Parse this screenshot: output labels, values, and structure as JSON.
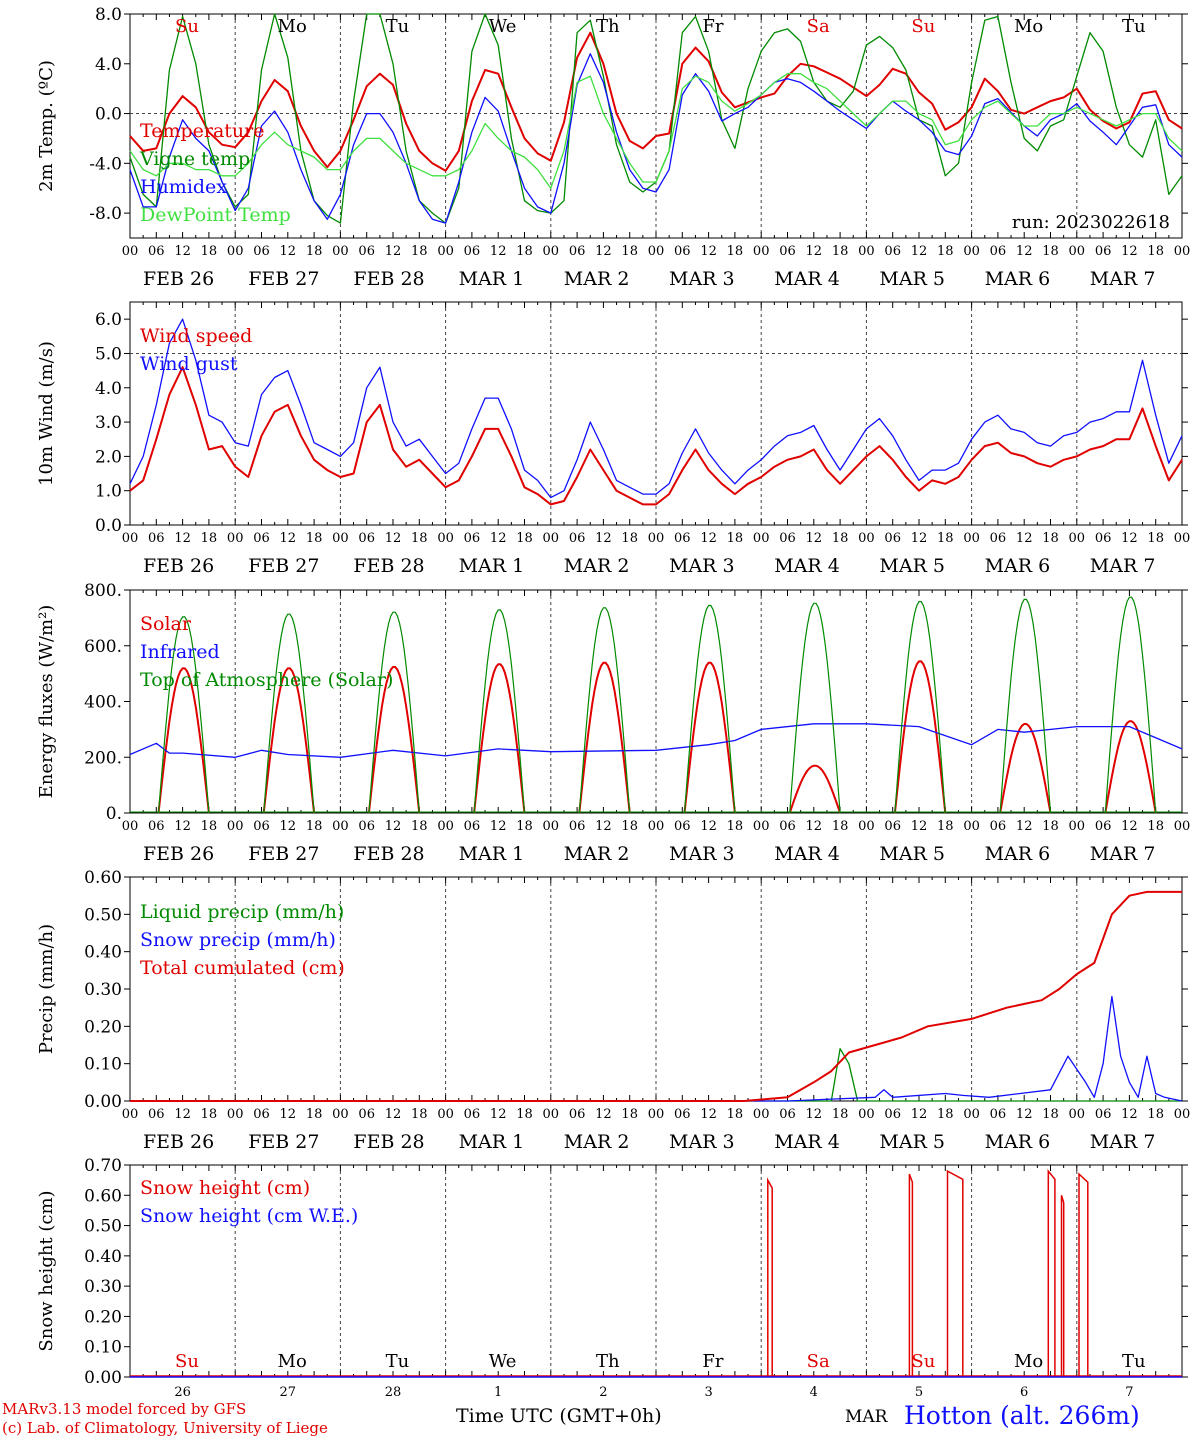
{
  "station_title": "Hotton (alt. 266m)",
  "footer": {
    "model_line": "MARv3.13 model forced by GFS",
    "credit_line": "(c) Lab. of Climatology, University of Liege",
    "x_axis_title": "Time UTC (GMT+0h)",
    "month_label": "MAR"
  },
  "colors": {
    "red": "#e00000",
    "green": "#008a00",
    "blue": "#1010ff",
    "light_green": "#40e040",
    "axis": "#000000"
  },
  "chart_data": [
    {
      "type": "line",
      "ylabel": "2m Temp. (ºC)",
      "ylim": [
        -10,
        8
      ],
      "yticks": [
        8,
        4,
        0,
        -4,
        -8
      ],
      "ytick_labels": [
        "8.0",
        "4.0",
        "0.0",
        "-4.0",
        "-8.0"
      ],
      "hline": 0,
      "annotation": "run: 2023022618",
      "weekday_labels": [
        "Su",
        "Mo",
        "Tu",
        "We",
        "Th",
        "Fr",
        "Sa",
        "Su",
        "Mo",
        "Tu"
      ],
      "weekday_colors": [
        "#e00000",
        "#000000",
        "#000000",
        "#000000",
        "#000000",
        "#000000",
        "#e00000",
        "#e00000",
        "#000000",
        "#000000"
      ],
      "x_hours": [
        0,
        3,
        6,
        9,
        12,
        15,
        18,
        21,
        24,
        27,
        30,
        33,
        36,
        39,
        42,
        45,
        48,
        51,
        54,
        57,
        60,
        63,
        66,
        69,
        72,
        75,
        78,
        81,
        84,
        87,
        90,
        93,
        96,
        99,
        102,
        105,
        108,
        111,
        114,
        117,
        120,
        123,
        126,
        129,
        132,
        135,
        138,
        141,
        144,
        147,
        150,
        153,
        156,
        159,
        162,
        165,
        168,
        171,
        174,
        177,
        180,
        183,
        186,
        189,
        192,
        195,
        198,
        201,
        204,
        207,
        210,
        213,
        216,
        219,
        222,
        225,
        228,
        231,
        234,
        237,
        240
      ],
      "series": [
        {
          "name": "Temperature",
          "color": "#e00000",
          "values": [
            -1.8,
            -3.0,
            -2.8,
            0.0,
            1.4,
            0.5,
            -1.5,
            -2.5,
            -2.7,
            -1.5,
            1.0,
            2.7,
            1.8,
            -1.0,
            -3.0,
            -4.3,
            -3.0,
            -0.5,
            2.2,
            3.2,
            2.3,
            -0.8,
            -3.0,
            -4.0,
            -4.6,
            -3.0,
            1.0,
            3.5,
            3.2,
            0.5,
            -2.0,
            -3.2,
            -3.8,
            -0.7,
            4.5,
            6.5,
            4.0,
            0.0,
            -2.2,
            -2.8,
            -1.8,
            -1.6,
            4.0,
            5.3,
            4.2,
            1.7,
            0.5,
            0.9,
            1.3,
            1.6,
            3.0,
            4.0,
            3.8,
            3.3,
            2.8,
            2.1,
            1.4,
            2.3,
            3.6,
            3.2,
            1.7,
            0.8,
            -1.3,
            -0.7,
            0.5,
            2.8,
            1.8,
            0.3,
            0.0,
            0.5,
            1.0,
            1.3,
            2.0,
            0.3,
            -0.6,
            -1.2,
            -0.7,
            1.6,
            1.8,
            -0.5,
            -1.2
          ]
        },
        {
          "name": "Vigne temp",
          "color": "#008a00",
          "values": [
            -3.5,
            -6.5,
            -7.5,
            3.5,
            7.8,
            4.0,
            -2.5,
            -5.5,
            -7.5,
            -6.5,
            3.5,
            8.0,
            4.5,
            -3.0,
            -7.0,
            -8.2,
            -8.8,
            1.0,
            8.0,
            8.0,
            4.0,
            -3.0,
            -7.0,
            -8.0,
            -8.8,
            -6.0,
            5.0,
            8.0,
            5.5,
            -2.0,
            -7.0,
            -7.8,
            -8.0,
            -7.0,
            6.5,
            7.5,
            3.0,
            -2.5,
            -5.5,
            -6.3,
            -5.5,
            -3.0,
            6.5,
            7.8,
            5.0,
            -0.5,
            -2.8,
            2.0,
            5.0,
            6.5,
            6.8,
            5.8,
            2.5,
            1.0,
            0.5,
            1.8,
            5.5,
            6.2,
            5.3,
            3.5,
            -0.5,
            -1.0,
            -5.0,
            -4.0,
            2.5,
            7.5,
            7.8,
            2.5,
            -2.0,
            -3.0,
            -1.0,
            -0.5,
            3.0,
            6.5,
            5.0,
            0.5,
            -2.5,
            -3.5,
            -0.5,
            -6.5,
            -5.0
          ]
        },
        {
          "name": "Humidex",
          "color": "#1010ff",
          "values": [
            -4.5,
            -7.5,
            -7.5,
            -3.5,
            -0.5,
            -2.0,
            -3.0,
            -5.5,
            -7.8,
            -6.0,
            -1.0,
            0.2,
            -1.5,
            -4.5,
            -7.0,
            -8.5,
            -6.5,
            -2.5,
            0.0,
            0.0,
            -1.5,
            -4.0,
            -7.0,
            -8.5,
            -8.8,
            -5.5,
            -1.5,
            1.3,
            0.2,
            -3.0,
            -6.0,
            -7.5,
            -8.0,
            -4.0,
            2.3,
            4.8,
            2.5,
            -1.5,
            -4.5,
            -6.0,
            -6.3,
            -4.5,
            1.5,
            3.2,
            1.8,
            -0.6,
            0.0,
            0.5,
            1.5,
            2.5,
            2.8,
            2.5,
            1.8,
            1.0,
            0.2,
            -0.5,
            -1.2,
            0.0,
            1.0,
            0.2,
            -0.5,
            -1.5,
            -3.0,
            -3.3,
            -1.8,
            0.8,
            1.2,
            0.1,
            -1.0,
            -1.8,
            -0.5,
            0.0,
            0.8,
            -0.6,
            -1.5,
            -2.5,
            -1.0,
            0.5,
            0.7,
            -2.5,
            -3.5
          ]
        },
        {
          "name": "DewPoint Temp",
          "color": "#40e040",
          "values": [
            -3.0,
            -4.5,
            -5.0,
            -4.0,
            -4.0,
            -4.5,
            -4.5,
            -5.0,
            -5.0,
            -4.0,
            -2.5,
            -1.5,
            -2.5,
            -3.0,
            -3.5,
            -4.5,
            -4.5,
            -3.0,
            -2.0,
            -2.0,
            -3.0,
            -4.0,
            -4.5,
            -5.0,
            -5.0,
            -4.5,
            -3.0,
            -0.8,
            -2.0,
            -3.0,
            -3.5,
            -4.5,
            -6.0,
            -3.0,
            2.5,
            3.0,
            0.0,
            -2.0,
            -4.0,
            -5.5,
            -5.5,
            -3.0,
            2.0,
            3.0,
            2.5,
            1.0,
            0.2,
            0.8,
            1.5,
            2.5,
            3.2,
            3.2,
            2.5,
            2.0,
            1.0,
            0.0,
            -1.0,
            0.0,
            1.0,
            1.0,
            0.0,
            -0.5,
            -2.5,
            -2.2,
            -0.5,
            0.5,
            1.0,
            0.0,
            -1.0,
            -1.0,
            0.0,
            0.0,
            0.5,
            0.0,
            -0.5,
            -1.0,
            -0.5,
            0.0,
            0.0,
            -2.0,
            -3.0
          ]
        }
      ]
    },
    {
      "type": "line",
      "ylabel": "10m Wind (m/s)",
      "ylim": [
        0,
        6.5
      ],
      "yticks": [
        0,
        1,
        2,
        3,
        4,
        5,
        6
      ],
      "ytick_labels": [
        "0.0",
        "1.0",
        "2.0",
        "3.0",
        "4.0",
        "5.0",
        "6.0"
      ],
      "hline": 5,
      "x_hours": [
        0,
        3,
        6,
        9,
        12,
        15,
        18,
        21,
        24,
        27,
        30,
        33,
        36,
        39,
        42,
        45,
        48,
        51,
        54,
        57,
        60,
        63,
        66,
        69,
        72,
        75,
        78,
        81,
        84,
        87,
        90,
        93,
        96,
        99,
        102,
        105,
        108,
        111,
        114,
        117,
        120,
        123,
        126,
        129,
        132,
        135,
        138,
        141,
        144,
        147,
        150,
        153,
        156,
        159,
        162,
        165,
        168,
        171,
        174,
        177,
        180,
        183,
        186,
        189,
        192,
        195,
        198,
        201,
        204,
        207,
        210,
        213,
        216,
        219,
        222,
        225,
        228,
        231,
        234,
        237,
        240
      ],
      "series": [
        {
          "name": "Wind speed",
          "color": "#e00000",
          "values": [
            1.0,
            1.3,
            2.5,
            3.8,
            4.6,
            3.5,
            2.2,
            2.3,
            1.7,
            1.4,
            2.6,
            3.3,
            3.5,
            2.6,
            1.9,
            1.6,
            1.4,
            1.5,
            3.0,
            3.5,
            2.2,
            1.7,
            1.9,
            1.5,
            1.1,
            1.3,
            2.0,
            2.8,
            2.8,
            2.0,
            1.1,
            0.9,
            0.6,
            0.7,
            1.4,
            2.2,
            1.6,
            1.0,
            0.8,
            0.6,
            0.6,
            0.9,
            1.6,
            2.2,
            1.6,
            1.2,
            0.9,
            1.2,
            1.4,
            1.7,
            1.9,
            2.0,
            2.2,
            1.6,
            1.2,
            1.6,
            2.0,
            2.3,
            1.9,
            1.4,
            1.0,
            1.3,
            1.2,
            1.4,
            1.9,
            2.3,
            2.4,
            2.1,
            2.0,
            1.8,
            1.7,
            1.9,
            2.0,
            2.2,
            2.3,
            2.5,
            2.5,
            3.4,
            2.3,
            1.3,
            1.9
          ]
        },
        {
          "name": "Wind gust",
          "color": "#1010ff",
          "values": [
            1.2,
            2.0,
            3.5,
            5.3,
            6.0,
            4.8,
            3.2,
            3.0,
            2.4,
            2.3,
            3.8,
            4.3,
            4.5,
            3.5,
            2.4,
            2.2,
            2.0,
            2.4,
            4.0,
            4.6,
            3.0,
            2.3,
            2.5,
            2.0,
            1.5,
            1.8,
            2.8,
            3.7,
            3.7,
            2.8,
            1.6,
            1.3,
            0.8,
            1.0,
            1.9,
            3.0,
            2.2,
            1.3,
            1.1,
            0.9,
            0.9,
            1.2,
            2.1,
            2.8,
            2.1,
            1.6,
            1.2,
            1.6,
            1.9,
            2.3,
            2.6,
            2.7,
            2.9,
            2.2,
            1.6,
            2.2,
            2.8,
            3.1,
            2.6,
            1.9,
            1.3,
            1.6,
            1.6,
            1.8,
            2.5,
            3.0,
            3.2,
            2.8,
            2.7,
            2.4,
            2.3,
            2.6,
            2.7,
            3.0,
            3.1,
            3.3,
            3.3,
            4.8,
            3.2,
            1.8,
            2.6
          ]
        }
      ]
    },
    {
      "type": "line",
      "ylabel": "Energy fluxes (W/m²)",
      "ylim": [
        0,
        800
      ],
      "yticks": [
        0,
        200,
        400,
        600,
        800
      ],
      "ytick_labels": [
        "0.",
        "200.",
        "400.",
        "600.",
        "800."
      ],
      "daytime_hours": [
        6.5,
        18.0
      ],
      "series": [
        {
          "name": "Solar",
          "color": "#e00000",
          "daily_peak": [
            520,
            520,
            525,
            535,
            540,
            540,
            170,
            545,
            320,
            330
          ]
        },
        {
          "name": "Infrared",
          "color": "#1010ff",
          "x_hours": [
            0,
            6,
            9,
            12,
            24,
            30,
            36,
            48,
            60,
            72,
            84,
            96,
            120,
            132,
            138,
            144,
            156,
            168,
            180,
            192,
            198,
            204,
            216,
            228,
            240
          ],
          "values": [
            210,
            250,
            215,
            215,
            200,
            225,
            210,
            200,
            225,
            205,
            230,
            220,
            225,
            245,
            260,
            300,
            320,
            320,
            310,
            245,
            300,
            290,
            310,
            310,
            230
          ]
        },
        {
          "name": "Top of Atmosphere (Solar)",
          "color": "#008a00",
          "daily_peak": [
            705,
            715,
            722,
            730,
            738,
            746,
            754,
            760,
            768,
            776
          ]
        }
      ]
    },
    {
      "type": "line",
      "ylabel": "Precip (mm/h)",
      "ylim": [
        0,
        0.6
      ],
      "yticks": [
        0,
        0.1,
        0.2,
        0.3,
        0.4,
        0.5,
        0.6
      ],
      "ytick_labels": [
        "0.00",
        "0.10",
        "0.20",
        "0.30",
        "0.40",
        "0.50",
        "0.60"
      ],
      "series": [
        {
          "name": "Liquid precip (mm/h)",
          "color": "#008a00",
          "x_hours": [
            0,
            160,
            162,
            164,
            166,
            240
          ],
          "values": [
            0,
            0,
            0.14,
            0.1,
            0,
            0
          ]
        },
        {
          "name": "Snow precip (mm/h)",
          "color": "#1010ff",
          "x_hours": [
            0,
            150,
            160,
            170,
            172,
            174,
            186,
            190,
            196,
            210,
            214,
            218,
            220,
            222,
            224,
            226,
            228,
            230,
            232,
            234,
            236,
            240
          ],
          "values": [
            0,
            0,
            0.005,
            0.01,
            0.03,
            0.01,
            0.02,
            0.015,
            0.01,
            0.03,
            0.12,
            0.05,
            0.01,
            0.1,
            0.28,
            0.12,
            0.05,
            0.01,
            0.12,
            0.02,
            0.01,
            0
          ]
        },
        {
          "name": "Total cumulated (cm)",
          "color": "#e00000",
          "x_hours": [
            0,
            140,
            150,
            156,
            160,
            164,
            170,
            176,
            182,
            192,
            200,
            208,
            212,
            216,
            220,
            224,
            228,
            232,
            240
          ],
          "values": [
            0,
            0,
            0.01,
            0.05,
            0.08,
            0.13,
            0.15,
            0.17,
            0.2,
            0.22,
            0.25,
            0.27,
            0.3,
            0.34,
            0.37,
            0.5,
            0.55,
            0.56,
            0.56
          ]
        }
      ]
    },
    {
      "type": "line",
      "ylabel": "Snow height (cm)",
      "ylim": [
        0,
        0.7
      ],
      "yticks": [
        0,
        0.1,
        0.2,
        0.3,
        0.4,
        0.5,
        0.6,
        0.7
      ],
      "ytick_labels": [
        "0.00",
        "0.10",
        "0.20",
        "0.30",
        "0.40",
        "0.50",
        "0.60",
        "0.70"
      ],
      "weekday_labels": [
        "Su",
        "Mo",
        "Tu",
        "We",
        "Th",
        "Fr",
        "Sa",
        "Su",
        "Mo",
        "Tu"
      ],
      "weekday_colors": [
        "#e00000",
        "#000000",
        "#000000",
        "#000000",
        "#000000",
        "#000000",
        "#e00000",
        "#e00000",
        "#000000",
        "#000000"
      ],
      "day_numbers": [
        "26",
        "27",
        "28",
        "1",
        "2",
        "3",
        "4",
        "5",
        "6",
        "7"
      ],
      "series": [
        {
          "name": "Snow height (cm)",
          "color": "#e00000",
          "spikes": [
            [
              145.5,
              146.5,
              0.65
            ],
            [
              177.8,
              178.5,
              0.67
            ],
            [
              186.5,
              190.0,
              0.68
            ],
            [
              209.5,
              211.0,
              0.68
            ],
            [
              212.5,
              213.0,
              0.6
            ],
            [
              216.5,
              218.5,
              0.67
            ]
          ]
        },
        {
          "name": "Snow height (cm W.E.)",
          "color": "#1010ff",
          "values": [
            0
          ]
        }
      ]
    }
  ],
  "x_axis": {
    "hour_ticks": [
      "00",
      "06",
      "12",
      "18"
    ],
    "final_tick": "00",
    "date_labels": [
      "FEB  26",
      "FEB  27",
      "FEB  28",
      "MAR   1",
      "MAR   2",
      "MAR   3",
      "MAR   4",
      "MAR   5",
      "MAR   6",
      "MAR   7"
    ]
  }
}
